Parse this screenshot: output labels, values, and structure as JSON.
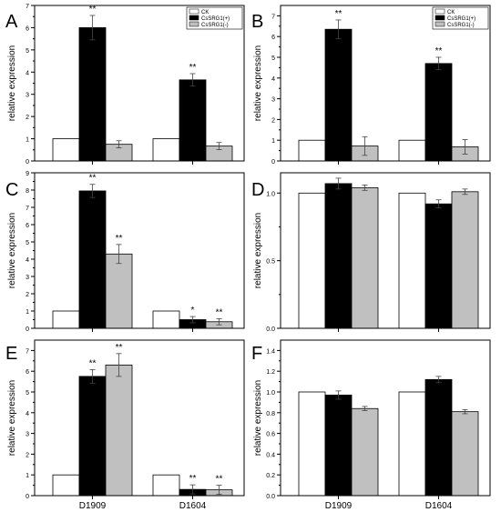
{
  "figure": {
    "series_labels": [
      "CK",
      "CsSRG1(+)",
      "CsSRG1(-)"
    ],
    "series_colors": [
      "#ffffff",
      "#000000",
      "#c0c0c0"
    ],
    "xlabel": "",
    "ylabel": "relative expression"
  },
  "chart_data": [
    {
      "panel": "A",
      "type": "bar",
      "categories": [
        "D1909",
        "D1604"
      ],
      "show_xticklabels": false,
      "legend": "top-right",
      "ylabel": "relative expression",
      "ylim": [
        0,
        7
      ],
      "yticks": [
        0,
        1,
        2,
        3,
        4,
        5,
        6,
        7
      ],
      "ytick_labels": [
        "0",
        "1",
        "2",
        "3",
        "4",
        "5",
        "6",
        "7"
      ],
      "series": [
        {
          "name": "CK",
          "color": "#ffffff",
          "values": [
            1.0,
            1.0
          ],
          "errors": [
            0,
            0
          ],
          "annotations": [
            "",
            ""
          ]
        },
        {
          "name": "CsSRG1(+)",
          "color": "#000000",
          "values": [
            6.0,
            3.65
          ],
          "errors": [
            0.55,
            0.28
          ],
          "annotations": [
            "**",
            "**"
          ]
        },
        {
          "name": "CsSRG1(-)",
          "color": "#c0c0c0",
          "values": [
            0.75,
            0.67
          ],
          "errors": [
            0.16,
            0.16
          ],
          "annotations": [
            "",
            ""
          ]
        }
      ]
    },
    {
      "panel": "B",
      "type": "bar",
      "categories": [
        "D1909",
        "D1604"
      ],
      "show_xticklabels": false,
      "legend": "top-right",
      "ylabel": "relative expression",
      "ylim": [
        0,
        7.5
      ],
      "yticks": [
        0,
        1,
        2,
        3,
        4,
        5,
        6,
        7
      ],
      "ytick_labels": [
        "0",
        "1",
        "2",
        "3",
        "4",
        "5",
        "6",
        "7"
      ],
      "series": [
        {
          "name": "CK",
          "color": "#ffffff",
          "values": [
            1.0,
            1.0
          ],
          "errors": [
            0,
            0
          ],
          "annotations": [
            "",
            ""
          ]
        },
        {
          "name": "CsSRG1(+)",
          "color": "#000000",
          "values": [
            6.35,
            4.7
          ],
          "errors": [
            0.45,
            0.3
          ],
          "annotations": [
            "**",
            "**"
          ]
        },
        {
          "name": "CsSRG1(-)",
          "color": "#c0c0c0",
          "values": [
            0.72,
            0.68
          ],
          "errors": [
            0.45,
            0.35
          ],
          "annotations": [
            "",
            ""
          ]
        }
      ]
    },
    {
      "panel": "C",
      "type": "bar",
      "categories": [
        "D1909",
        "D1604"
      ],
      "show_xticklabels": false,
      "legend": "none",
      "ylabel": "relative expression",
      "ylim": [
        0,
        9
      ],
      "yticks": [
        0,
        1,
        2,
        3,
        4,
        5,
        6,
        7,
        8,
        9
      ],
      "ytick_labels": [
        "0",
        "1",
        "2",
        "3",
        "4",
        "5",
        "6",
        "7",
        "8",
        "9"
      ],
      "series": [
        {
          "name": "CK",
          "color": "#ffffff",
          "values": [
            1.0,
            1.0
          ],
          "errors": [
            0,
            0
          ],
          "annotations": [
            "",
            ""
          ]
        },
        {
          "name": "CsSRG1(+)",
          "color": "#000000",
          "values": [
            7.95,
            0.5
          ],
          "errors": [
            0.38,
            0.18
          ],
          "annotations": [
            "**",
            "*"
          ]
        },
        {
          "name": "CsSRG1(-)",
          "color": "#c0c0c0",
          "values": [
            4.3,
            0.38
          ],
          "errors": [
            0.55,
            0.18
          ],
          "annotations": [
            "**",
            "**"
          ]
        }
      ]
    },
    {
      "panel": "D",
      "type": "bar",
      "categories": [
        "D1909",
        "D1604"
      ],
      "show_xticklabels": false,
      "legend": "none",
      "ylabel": "relative expression",
      "ylim": [
        0,
        1.15
      ],
      "yticks": [
        0,
        0.5,
        1.0
      ],
      "ytick_labels": [
        "0.0",
        "0.5",
        "1.0"
      ],
      "series": [
        {
          "name": "CK",
          "color": "#ffffff",
          "values": [
            1.0,
            1.0
          ],
          "errors": [
            0,
            0
          ],
          "annotations": [
            "",
            ""
          ]
        },
        {
          "name": "CsSRG1(+)",
          "color": "#000000",
          "values": [
            1.07,
            0.92
          ],
          "errors": [
            0.04,
            0.03
          ],
          "annotations": [
            "",
            ""
          ]
        },
        {
          "name": "CsSRG1(-)",
          "color": "#c0c0c0",
          "values": [
            1.04,
            1.01
          ],
          "errors": [
            0.02,
            0.02
          ],
          "annotations": [
            "",
            ""
          ]
        }
      ]
    },
    {
      "panel": "E",
      "type": "bar",
      "categories": [
        "D1909",
        "D1604"
      ],
      "show_xticklabels": true,
      "legend": "none",
      "ylabel": "relative expression",
      "ylim": [
        0,
        7.5
      ],
      "yticks": [
        0,
        1,
        2,
        3,
        4,
        5,
        6,
        7
      ],
      "ytick_labels": [
        "0",
        "1",
        "2",
        "3",
        "4",
        "5",
        "6",
        "7"
      ],
      "series": [
        {
          "name": "CK",
          "color": "#ffffff",
          "values": [
            1.0,
            1.0
          ],
          "errors": [
            0,
            0
          ],
          "annotations": [
            "",
            ""
          ]
        },
        {
          "name": "CsSRG1(+)",
          "color": "#000000",
          "values": [
            5.75,
            0.3
          ],
          "errors": [
            0.33,
            0.22
          ],
          "annotations": [
            "**",
            "**"
          ]
        },
        {
          "name": "CsSRG1(-)",
          "color": "#c0c0c0",
          "values": [
            6.3,
            0.28
          ],
          "errors": [
            0.55,
            0.22
          ],
          "annotations": [
            "**",
            "**"
          ]
        }
      ]
    },
    {
      "panel": "F",
      "type": "bar",
      "categories": [
        "D1909",
        "D1604"
      ],
      "show_xticklabels": true,
      "legend": "none",
      "ylabel": "relative expression",
      "ylim": [
        0,
        1.5
      ],
      "yticks": [
        0,
        0.2,
        0.4,
        0.6,
        0.8,
        1.0,
        1.2,
        1.4
      ],
      "ytick_labels": [
        "0.0",
        "0.2",
        "0.4",
        "0.6",
        "0.8",
        "1.0",
        "1.2",
        "1.4"
      ],
      "series": [
        {
          "name": "CK",
          "color": "#ffffff",
          "values": [
            1.0,
            1.0
          ],
          "errors": [
            0,
            0
          ],
          "annotations": [
            "",
            ""
          ]
        },
        {
          "name": "CsSRG1(+)",
          "color": "#000000",
          "values": [
            0.97,
            1.12
          ],
          "errors": [
            0.04,
            0.03
          ],
          "annotations": [
            "",
            ""
          ]
        },
        {
          "name": "CsSRG1(-)",
          "color": "#c0c0c0",
          "values": [
            0.84,
            0.81
          ],
          "errors": [
            0.02,
            0.02
          ],
          "annotations": [
            "",
            ""
          ]
        }
      ]
    }
  ]
}
